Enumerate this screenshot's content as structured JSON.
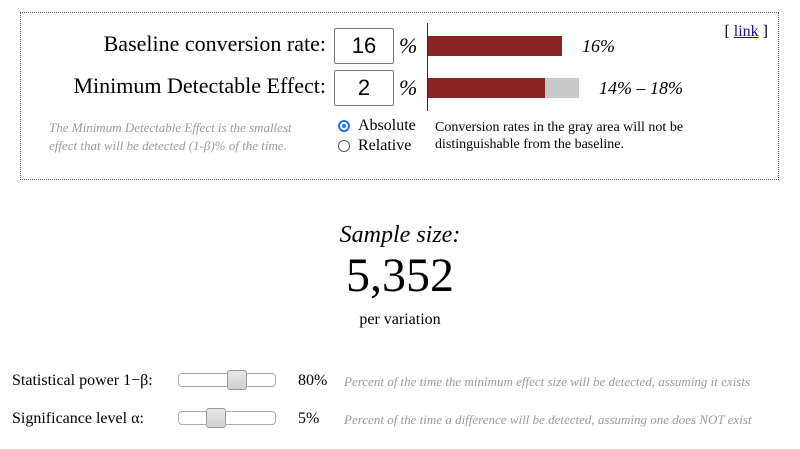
{
  "calculator": {
    "baseline_label": "Baseline conversion rate:",
    "baseline_value": "16",
    "baseline_unit": "%",
    "mde_label": "Minimum Detectable Effect:",
    "mde_value": "2",
    "mde_unit": "%",
    "link_open": "[",
    "link_text": "link",
    "link_close": "]",
    "mde_note": "The Minimum Detectable Effect is the smallest effect that will be detected (1-β)% of the time.",
    "radio_absolute": "Absolute",
    "radio_relative": "Relative",
    "selected_mode": "Absolute",
    "gray_area_note": "Conversion rates in the gray area will not be distinguishable from the baseline."
  },
  "bars": {
    "baseline_label": "16%",
    "range_label": "14% – 18%",
    "baseline_fraction": 0.16,
    "range_low_fraction": 0.14,
    "range_high_fraction": 0.18,
    "colors": {
      "bar": "#8b2424",
      "gray": "#c8c8c8"
    }
  },
  "result": {
    "title": "Sample size:",
    "value": "5,352",
    "subtitle": "per variation"
  },
  "sliders": [
    {
      "label": "Statistical power 1−β:",
      "value": "80%",
      "level": 0.8,
      "description": "Percent of the time the minimum effect size will be detected, assuming it exists"
    },
    {
      "label": "Significance level α:",
      "value": "5%",
      "level": 0.05,
      "description": "Percent of the time a difference will be detected, assuming one does NOT exist"
    }
  ]
}
